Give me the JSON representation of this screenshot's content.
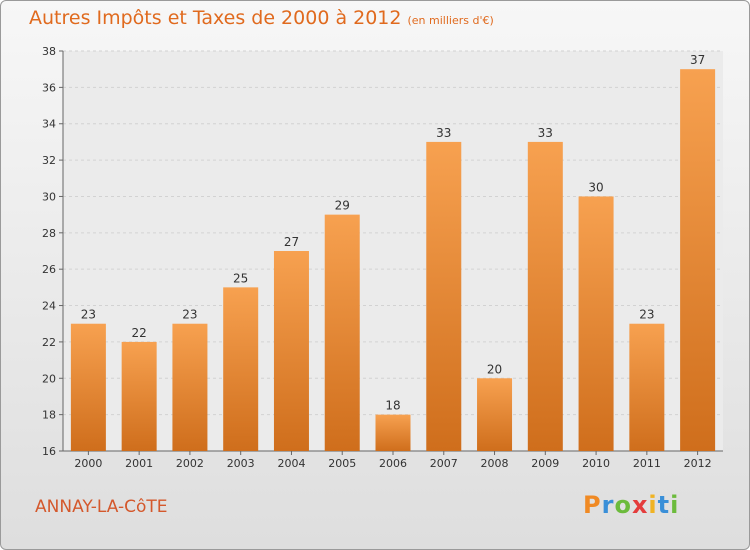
{
  "header": {
    "title": "Autres Impôts et Taxes de 2000 à 2012",
    "subtitle": "(en milliers d'€)"
  },
  "footer": {
    "location": "ANNAY-LA-CôTE",
    "logo": "Proxiti"
  },
  "colors": {
    "bar_light": "#f7a150",
    "bar_dark": "#cf6e1c",
    "title": "#e06a1e",
    "location": "#d4582c"
  },
  "logo_letters": [
    {
      "ch": "P",
      "color": "#f08a24"
    },
    {
      "ch": "r",
      "color": "#3a8fd8"
    },
    {
      "ch": "o",
      "color": "#6cbb3c"
    },
    {
      "ch": "x",
      "color": "#e43c3c"
    },
    {
      "ch": "i",
      "color": "#f0b323"
    },
    {
      "ch": "t",
      "color": "#3a8fd8"
    },
    {
      "ch": "i",
      "color": "#6cbb3c"
    }
  ],
  "chart_data": {
    "type": "bar",
    "title": "Autres Impôts et Taxes de 2000 à 2012",
    "subtitle": "(en milliers d'€)",
    "categories": [
      "2000",
      "2001",
      "2002",
      "2003",
      "2004",
      "2005",
      "2006",
      "2007",
      "2008",
      "2009",
      "2010",
      "2011",
      "2012"
    ],
    "values": [
      23,
      22,
      23,
      25,
      27,
      29,
      18,
      33,
      20,
      33,
      30,
      23,
      37
    ],
    "ylim": [
      16,
      38
    ],
    "yticks": [
      16,
      18,
      20,
      22,
      24,
      26,
      28,
      30,
      32,
      34,
      36,
      38
    ],
    "grid": true,
    "legend": "none"
  }
}
